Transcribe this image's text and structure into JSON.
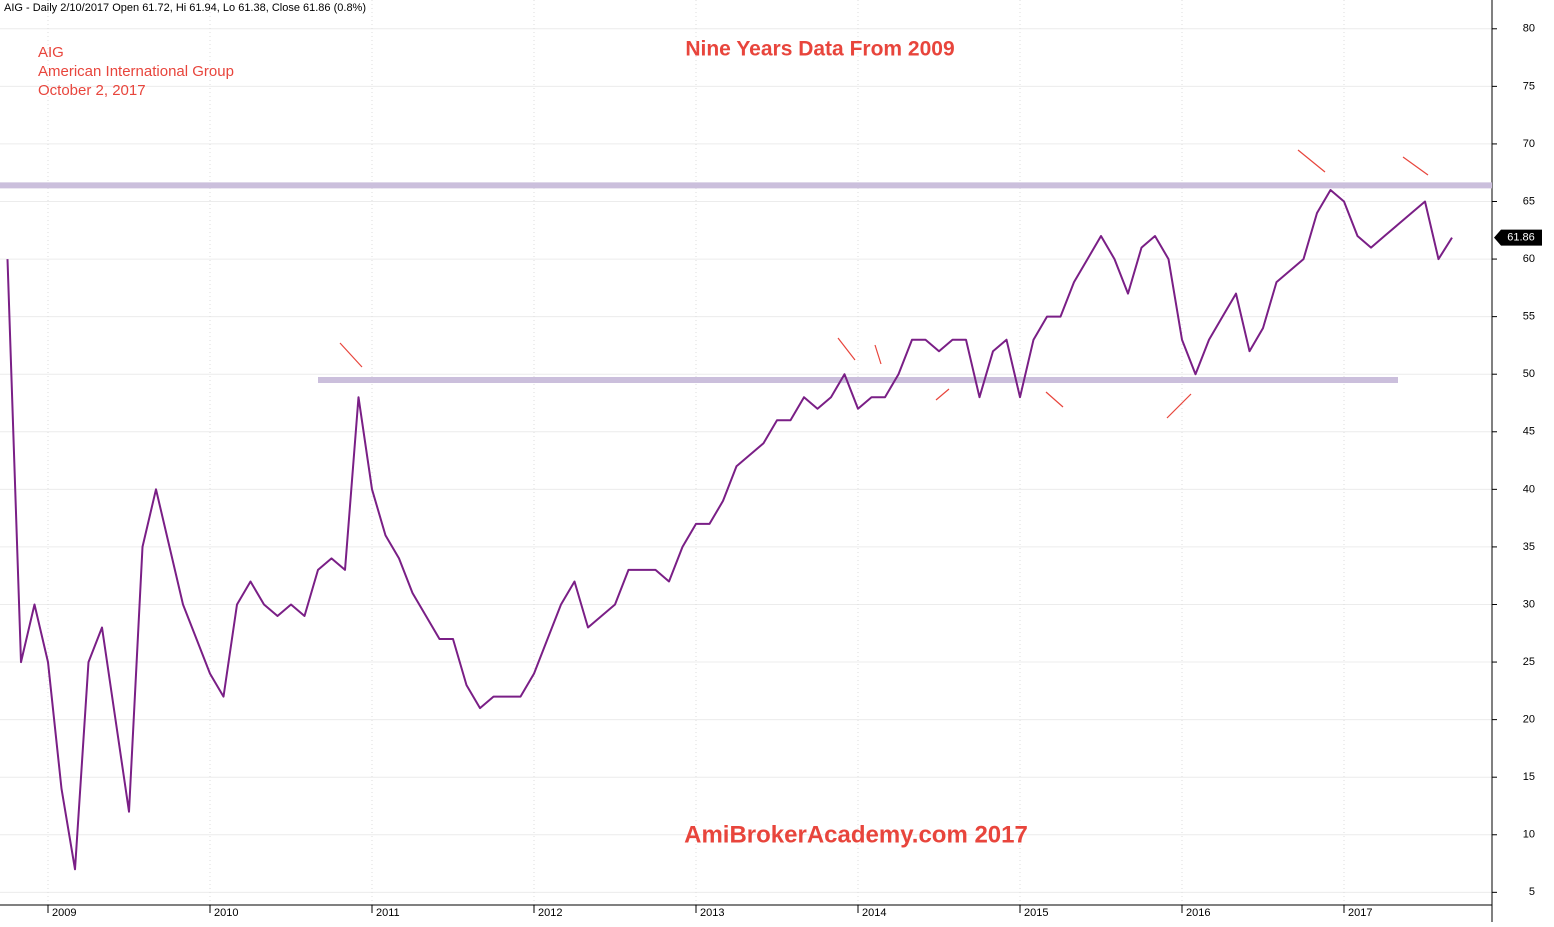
{
  "chart_data": {
    "type": "line",
    "header": "AIG - Daily 2/10/2017 Open 61.72, Hi 61.94, Lo 61.38, Close 61.86 (0.8%)",
    "title": "Nine Years Data From 2009",
    "annotations": [
      "AIG",
      "American International Group",
      "October 2, 2017"
    ],
    "watermark": "AmiBrokerAcademy.com  2017",
    "last_value_label": "61.86",
    "categories": [
      null,
      null,
      null,
      "2009",
      null,
      null,
      null,
      null,
      null,
      null,
      null,
      null,
      null,
      null,
      null,
      "2010",
      null,
      null,
      null,
      null,
      null,
      null,
      null,
      null,
      null,
      null,
      null,
      "2011",
      null,
      null,
      null,
      null,
      null,
      null,
      null,
      null,
      null,
      null,
      null,
      "2012",
      null,
      null,
      null,
      null,
      null,
      null,
      null,
      null,
      null,
      null,
      null,
      "2013",
      null,
      null,
      null,
      null,
      null,
      null,
      null,
      null,
      null,
      null,
      null,
      "2014",
      null,
      null,
      null,
      null,
      null,
      null,
      null,
      null,
      null,
      null,
      null,
      "2015",
      null,
      null,
      null,
      null,
      null,
      null,
      null,
      null,
      null,
      null,
      null,
      "2016",
      null,
      null,
      null,
      null,
      null,
      null,
      null,
      null,
      null,
      null,
      null,
      "2017",
      null,
      null,
      null,
      null,
      null,
      null,
      null,
      null
    ],
    "series": [
      {
        "name": "AIG",
        "color": "#7a1f86",
        "values": [
          60,
          25,
          30,
          25,
          14,
          7,
          25,
          28,
          20,
          12,
          35,
          40,
          35,
          30,
          27,
          24,
          22,
          30,
          32,
          30,
          29,
          30,
          29,
          33,
          34,
          33,
          48,
          40,
          36,
          34,
          31,
          29,
          27,
          27,
          23,
          21,
          22,
          22,
          22,
          24,
          27,
          30,
          32,
          28,
          29,
          30,
          33,
          33,
          33,
          32,
          35,
          37,
          37,
          39,
          42,
          43,
          44,
          46,
          46,
          48,
          47,
          48,
          50,
          47,
          48,
          48,
          50,
          53,
          53,
          52,
          53,
          53,
          48,
          52,
          53,
          48,
          53,
          55,
          55,
          58,
          60,
          62,
          60,
          57,
          61,
          62,
          60,
          53,
          50,
          53,
          55,
          57,
          52,
          54,
          58,
          59,
          60,
          64,
          66,
          65,
          62,
          61,
          62,
          63,
          64,
          65,
          60,
          61.86
        ]
      }
    ],
    "hlines": [
      {
        "value": 66.4,
        "color": "#cbbfdc"
      },
      {
        "value": 49.5,
        "from": 23,
        "to": 103,
        "color": "#cbbfdc"
      }
    ],
    "ylim": [
      3.9,
      82.5
    ],
    "yticks": [
      5,
      10,
      15,
      20,
      25,
      30,
      35,
      40,
      45,
      50,
      55,
      60,
      65,
      70,
      75,
      80
    ],
    "grid": true
  }
}
